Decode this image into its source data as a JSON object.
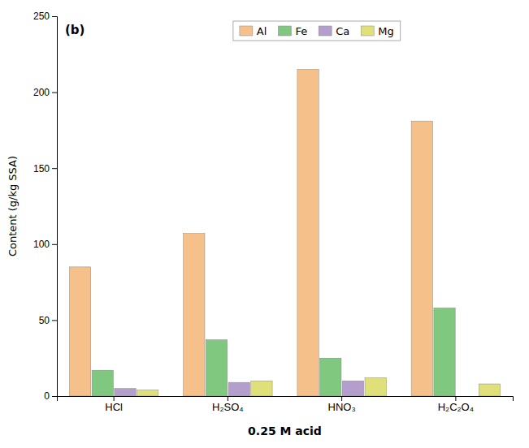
{
  "chart_data": {
    "type": "bar",
    "categories": [
      "HCl",
      "H₂SO₄",
      "HNO₃",
      "H₂C₂O₄"
    ],
    "series": [
      {
        "name": "Al",
        "color": "#F5C08A",
        "values": [
          85,
          107,
          215,
          181
        ]
      },
      {
        "name": "Fe",
        "color": "#80C880",
        "values": [
          17,
          37,
          25,
          58
        ]
      },
      {
        "name": "Ca",
        "color": "#B49FCC",
        "values": [
          5,
          9,
          10,
          0
        ]
      },
      {
        "name": "Mg",
        "color": "#E0E07A",
        "values": [
          4,
          10,
          12,
          8
        ]
      }
    ],
    "xlabel": "0.25 M acid",
    "ylabel": "Content (g/kg SSA)",
    "ylim": [
      0,
      250
    ],
    "yticks": [
      0,
      50,
      100,
      150,
      200,
      250
    ],
    "annotations": [
      "(b)"
    ],
    "grid": false,
    "legend": "top"
  }
}
